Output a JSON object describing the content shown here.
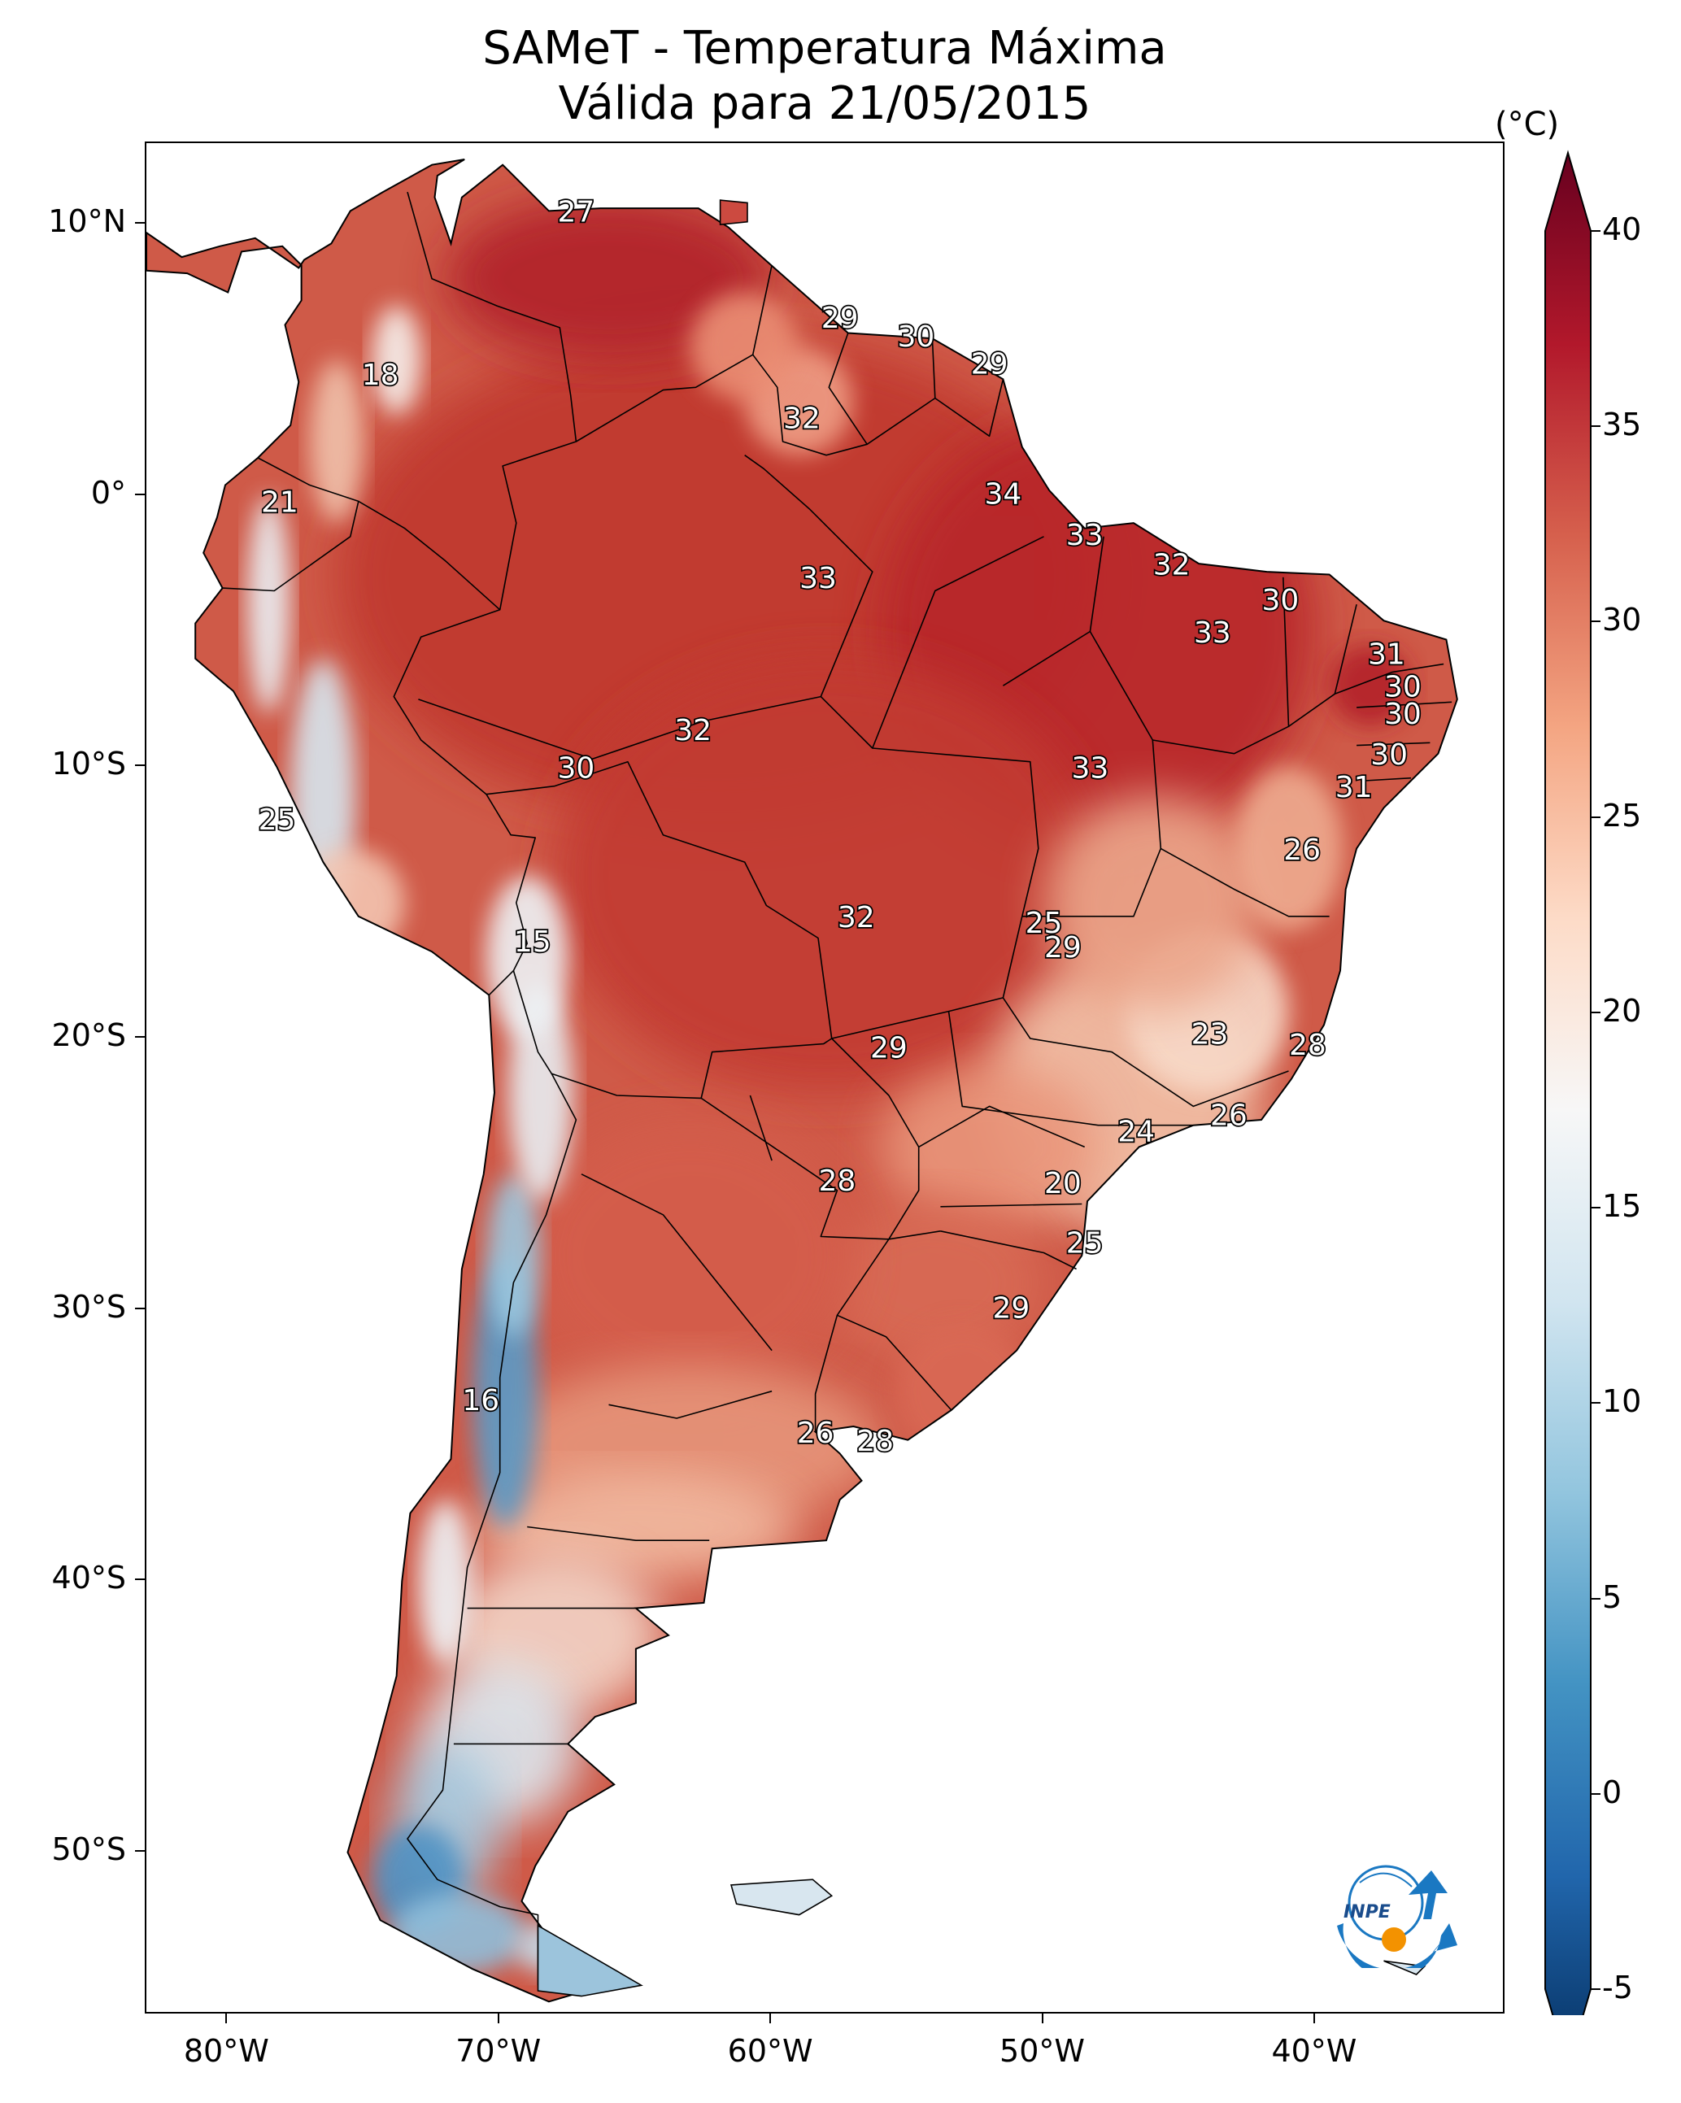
{
  "title": {
    "line1": "SAMeT - Temperatura Máxima",
    "line2": "Válida para 21/05/2015"
  },
  "axes": {
    "lon_range": [
      -83,
      -33
    ],
    "lat_range": [
      -56,
      13
    ],
    "x_ticks": [
      {
        "value": -80,
        "label": "80°W"
      },
      {
        "value": -70,
        "label": "70°W"
      },
      {
        "value": -60,
        "label": "60°W"
      },
      {
        "value": -50,
        "label": "50°W"
      },
      {
        "value": -40,
        "label": "40°W"
      }
    ],
    "y_ticks": [
      {
        "value": 10,
        "label": "10°N"
      },
      {
        "value": 0,
        "label": "0°"
      },
      {
        "value": -10,
        "label": "10°S"
      },
      {
        "value": -20,
        "label": "20°S"
      },
      {
        "value": -30,
        "label": "30°S"
      },
      {
        "value": -40,
        "label": "40°S"
      },
      {
        "value": -50,
        "label": "50°S"
      }
    ]
  },
  "colorbar": {
    "unit": "(°C)",
    "range": [
      -5,
      40
    ],
    "ticks": [
      {
        "value": 40,
        "label": "40"
      },
      {
        "value": 35,
        "label": "35"
      },
      {
        "value": 30,
        "label": "30"
      },
      {
        "value": 25,
        "label": "25"
      },
      {
        "value": 20,
        "label": "20"
      },
      {
        "value": 15,
        "label": "15"
      },
      {
        "value": 10,
        "label": "10"
      },
      {
        "value": 5,
        "label": "5"
      },
      {
        "value": 0,
        "label": "0"
      },
      {
        "value": -5,
        "label": "-5"
      }
    ],
    "colors": [
      "#053061",
      "#2166ac",
      "#4393c3",
      "#92c5de",
      "#d1e5f0",
      "#f7f7f7",
      "#fddbc7",
      "#f4a582",
      "#d6604d",
      "#b2182b",
      "#67001f"
    ]
  },
  "chart_data": {
    "type": "heatmap",
    "title": "SAMeT - Temperatura Máxima Válida para 21/05/2015",
    "variable": "Temperatura Máxima",
    "unit": "°C",
    "color_range": [
      -5,
      40
    ],
    "station_labels": [
      {
        "lon": -67.2,
        "lat": 10.4,
        "value": 27
      },
      {
        "lon": -57.5,
        "lat": 6.5,
        "value": 29
      },
      {
        "lon": -54.7,
        "lat": 5.8,
        "value": 30
      },
      {
        "lon": -52.0,
        "lat": 4.8,
        "value": 29
      },
      {
        "lon": -74.4,
        "lat": 4.4,
        "value": 18
      },
      {
        "lon": -58.9,
        "lat": 2.8,
        "value": 32
      },
      {
        "lon": -51.5,
        "lat": 0.0,
        "value": 34
      },
      {
        "lon": -78.1,
        "lat": -0.3,
        "value": 21
      },
      {
        "lon": -48.5,
        "lat": -1.5,
        "value": 33
      },
      {
        "lon": -45.3,
        "lat": -2.6,
        "value": 32
      },
      {
        "lon": -58.3,
        "lat": -3.1,
        "value": 33
      },
      {
        "lon": -41.3,
        "lat": -3.9,
        "value": 30
      },
      {
        "lon": -43.8,
        "lat": -5.1,
        "value": 33
      },
      {
        "lon": -37.4,
        "lat": -5.9,
        "value": 31
      },
      {
        "lon": -36.8,
        "lat": -7.1,
        "value": 30
      },
      {
        "lon": -36.8,
        "lat": -8.1,
        "value": 30
      },
      {
        "lon": -62.9,
        "lat": -8.7,
        "value": 32
      },
      {
        "lon": -37.3,
        "lat": -9.6,
        "value": 30
      },
      {
        "lon": -67.2,
        "lat": -10.1,
        "value": 30
      },
      {
        "lon": -48.3,
        "lat": -10.1,
        "value": 33
      },
      {
        "lon": -38.6,
        "lat": -10.8,
        "value": 31
      },
      {
        "lon": -78.2,
        "lat": -12.0,
        "value": 25
      },
      {
        "lon": -40.5,
        "lat": -13.1,
        "value": 26
      },
      {
        "lon": -50.0,
        "lat": -15.8,
        "value": 25
      },
      {
        "lon": -56.9,
        "lat": -15.6,
        "value": 32
      },
      {
        "lon": -68.8,
        "lat": -16.5,
        "value": 15
      },
      {
        "lon": -49.3,
        "lat": -16.7,
        "value": 29
      },
      {
        "lon": -43.9,
        "lat": -19.9,
        "value": 23
      },
      {
        "lon": -40.3,
        "lat": -20.3,
        "value": 28
      },
      {
        "lon": -55.7,
        "lat": -20.4,
        "value": 29
      },
      {
        "lon": -43.2,
        "lat": -22.9,
        "value": 26
      },
      {
        "lon": -46.6,
        "lat": -23.5,
        "value": 24
      },
      {
        "lon": -49.3,
        "lat": -25.4,
        "value": 20
      },
      {
        "lon": -57.6,
        "lat": -25.3,
        "value": 28
      },
      {
        "lon": -48.5,
        "lat": -27.6,
        "value": 25
      },
      {
        "lon": -51.2,
        "lat": -30.0,
        "value": 29
      },
      {
        "lon": -70.7,
        "lat": -33.4,
        "value": 16
      },
      {
        "lon": -58.4,
        "lat": -34.6,
        "value": 26
      },
      {
        "lon": -56.2,
        "lat": -34.9,
        "value": 28
      }
    ]
  },
  "logo": {
    "text": "INPE"
  }
}
